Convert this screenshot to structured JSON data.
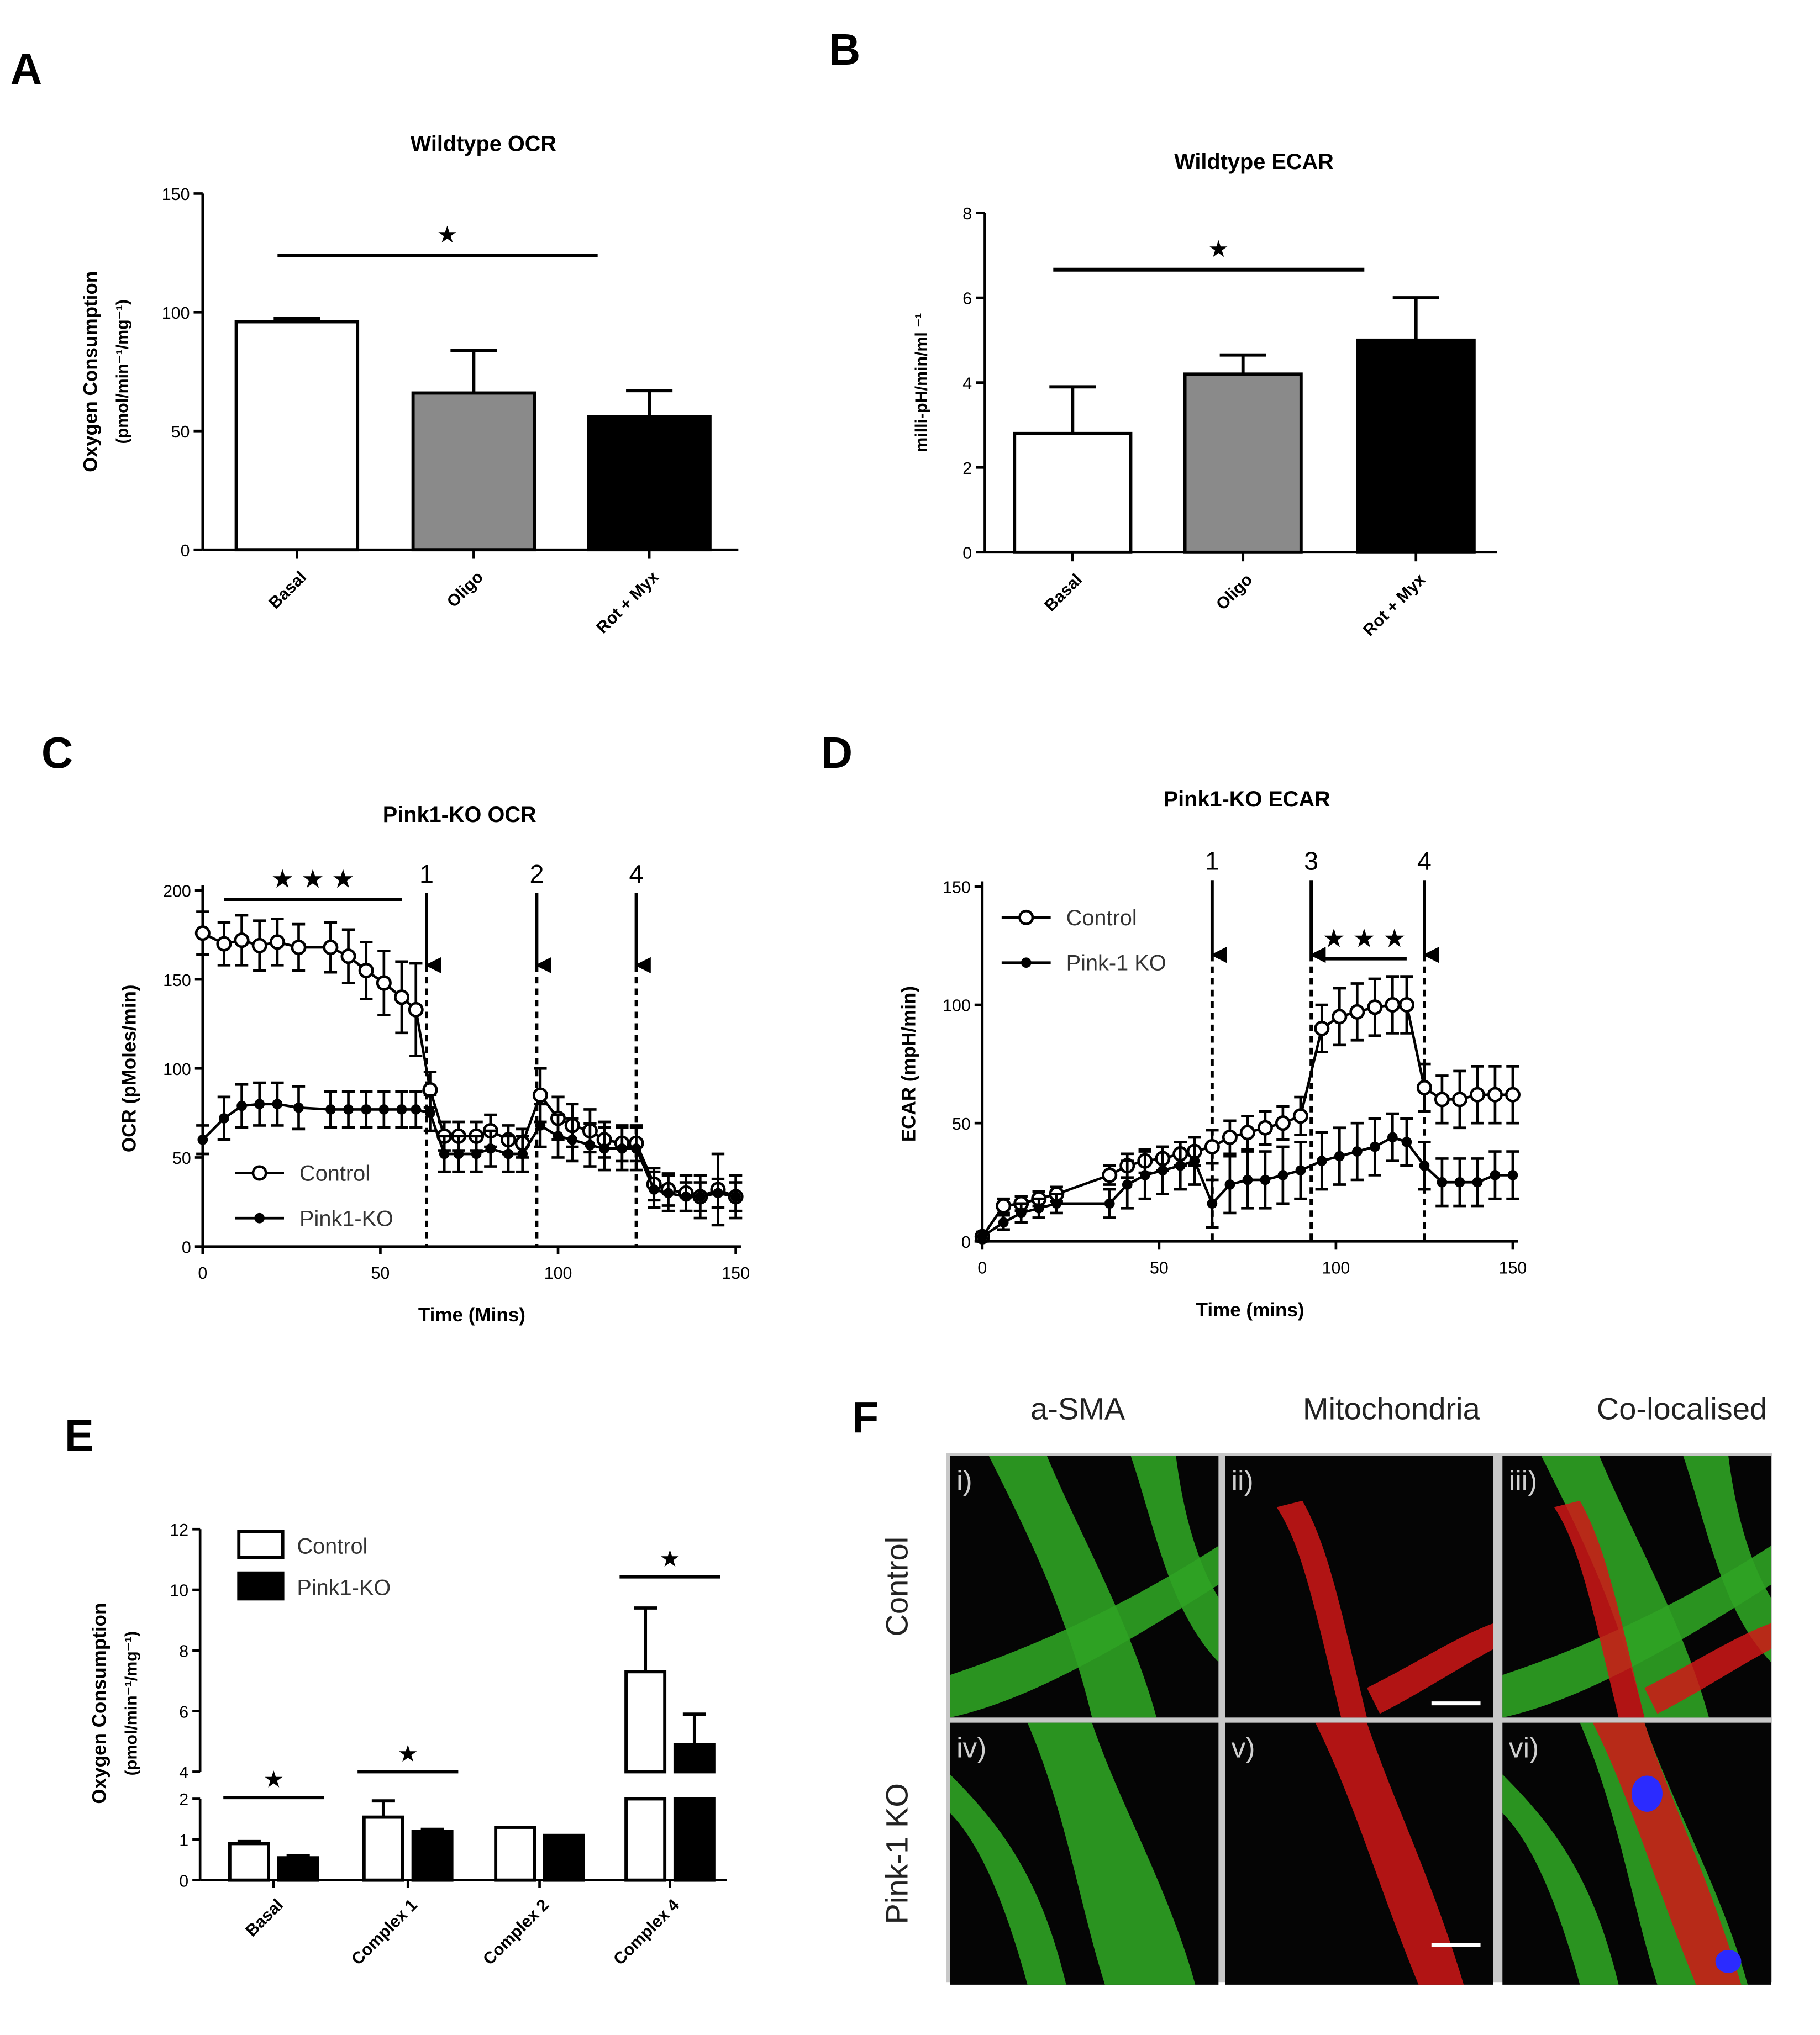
{
  "panels": {
    "A": {
      "letter": "A"
    },
    "B": {
      "letter": "B"
    },
    "C": {
      "letter": "C"
    },
    "D": {
      "letter": "D"
    },
    "E": {
      "letter": "E"
    },
    "F": {
      "letter": "F"
    }
  },
  "chart_data": [
    {
      "panel": "A",
      "type": "bar",
      "title": "Wildtype OCR",
      "ylabel": "Oxygen Consumption (pmol/min⁻¹/mg⁻¹)",
      "ylabel_line1": "Oxygen  Consumption",
      "ylabel_line2": "(pmol/min⁻¹/mg⁻¹)",
      "categories": [
        "Basal",
        "Oligo",
        "Rot + Myx"
      ],
      "values": [
        96,
        66,
        56
      ],
      "errors": [
        1.5,
        18,
        11
      ],
      "bar_colors": [
        "#ffffff",
        "#8a8a8a",
        "#000000"
      ],
      "ylim": [
        0,
        150
      ],
      "yticks": [
        "0",
        "50",
        "100",
        "150"
      ],
      "significance": {
        "mark": "★",
        "from": "Basal",
        "to": "Rot + Myx"
      }
    },
    {
      "panel": "B",
      "type": "bar",
      "title": "Wildtype ECAR",
      "ylabel": "milli-pH/min/ml ⁻¹",
      "categories": [
        "Basal",
        "Oligo",
        "Rot + Myx"
      ],
      "values": [
        2.8,
        4.2,
        5.0
      ],
      "errors": [
        1.1,
        0.45,
        1.0
      ],
      "bar_colors": [
        "#ffffff",
        "#8a8a8a",
        "#000000"
      ],
      "ylim": [
        0,
        8
      ],
      "yticks": [
        "0",
        "2",
        "4",
        "6",
        "8"
      ],
      "significance": {
        "mark": "★",
        "from": "Basal",
        "to": "Rot + Myx"
      }
    },
    {
      "panel": "C",
      "type": "line",
      "title": "Pink1-KO OCR",
      "xlabel": "Time (Mins)",
      "ylabel": "OCR (pMoles/min)",
      "xlim": [
        0,
        150
      ],
      "ylim": [
        0,
        200
      ],
      "xticks": [
        "0",
        "50",
        "100",
        "150"
      ],
      "yticks": [
        "0",
        "50",
        "100",
        "150",
        "200"
      ],
      "legend_position": "bottom-left",
      "injections": [
        {
          "label": "1",
          "x": 63
        },
        {
          "label": "2",
          "x": 94
        },
        {
          "label": "4",
          "x": 122
        }
      ],
      "significance": {
        "mark": "★ ★ ★",
        "x_from": 6,
        "x_to": 56
      },
      "series": [
        {
          "name": "Control",
          "marker": "open-circle",
          "x": [
            0,
            6,
            11,
            16,
            21,
            27,
            36,
            41,
            46,
            51,
            56,
            60,
            64,
            68,
            72,
            77,
            81,
            86,
            90,
            95,
            100,
            104,
            109,
            113,
            118,
            122,
            127,
            131,
            136,
            140,
            145,
            150
          ],
          "y": [
            176,
            170,
            172,
            169,
            171,
            168,
            168,
            163,
            155,
            148,
            140,
            133,
            88,
            62,
            62,
            62,
            65,
            60,
            58,
            85,
            72,
            68,
            65,
            60,
            58,
            58,
            35,
            32,
            30,
            28,
            32,
            28
          ],
          "err": [
            12,
            12,
            14,
            14,
            13,
            13,
            14,
            15,
            16,
            18,
            20,
            26,
            10,
            8,
            8,
            8,
            9,
            8,
            8,
            15,
            12,
            12,
            12,
            10,
            10,
            10,
            9,
            9,
            10,
            12,
            20,
            12
          ]
        },
        {
          "name": "Pink1-KO",
          "marker": "filled-circle",
          "x": [
            0,
            6,
            11,
            16,
            21,
            27,
            36,
            41,
            46,
            51,
            56,
            60,
            64,
            68,
            72,
            77,
            81,
            86,
            90,
            95,
            100,
            104,
            109,
            113,
            118,
            122,
            127,
            131,
            136,
            140,
            145,
            150
          ],
          "y": [
            60,
            72,
            79,
            80,
            80,
            78,
            77,
            77,
            77,
            77,
            77,
            77,
            75,
            52,
            52,
            52,
            55,
            52,
            52,
            68,
            62,
            60,
            57,
            55,
            55,
            55,
            32,
            30,
            28,
            28,
            30,
            28
          ],
          "err": [
            8,
            12,
            12,
            12,
            12,
            12,
            10,
            10,
            10,
            10,
            10,
            10,
            10,
            10,
            10,
            10,
            10,
            10,
            10,
            12,
            12,
            12,
            12,
            12,
            12,
            12,
            10,
            10,
            8,
            8,
            8,
            8
          ]
        }
      ]
    },
    {
      "panel": "D",
      "type": "line",
      "title": "Pink1-KO ECAR",
      "xlabel": "Time (mins)",
      "ylabel": "ECAR (mpH/min)",
      "xlim": [
        0,
        150
      ],
      "ylim": [
        0,
        150
      ],
      "xticks": [
        "0",
        "50",
        "100",
        "150"
      ],
      "yticks": [
        "0",
        "50",
        "100",
        "150"
      ],
      "legend_position": "top-left",
      "injections": [
        {
          "label": "1",
          "x": 65
        },
        {
          "label": "3",
          "x": 93
        },
        {
          "label": "4",
          "x": 125
        }
      ],
      "significance": {
        "mark": "★ ★ ★",
        "x_from": 96,
        "x_to": 120
      },
      "series": [
        {
          "name": "Control",
          "marker": "open-circle",
          "x": [
            0,
            6,
            11,
            16,
            21,
            36,
            41,
            46,
            51,
            56,
            60,
            65,
            70,
            75,
            80,
            85,
            90,
            96,
            101,
            106,
            111,
            116,
            120,
            125,
            130,
            135,
            140,
            145,
            150
          ],
          "y": [
            2,
            15,
            16,
            18,
            20,
            28,
            32,
            34,
            35,
            37,
            38,
            40,
            44,
            46,
            48,
            50,
            53,
            90,
            95,
            97,
            99,
            100,
            100,
            65,
            60,
            60,
            62,
            62,
            62
          ],
          "err": [
            2,
            3,
            3,
            3,
            3,
            4,
            5,
            5,
            5,
            5,
            6,
            7,
            7,
            7,
            7,
            7,
            8,
            10,
            12,
            12,
            12,
            12,
            12,
            10,
            10,
            12,
            12,
            12,
            12
          ]
        },
        {
          "name": "Pink-1 KO",
          "marker": "filled-circle",
          "x": [
            0,
            6,
            11,
            16,
            21,
            36,
            41,
            46,
            51,
            56,
            60,
            65,
            70,
            75,
            80,
            85,
            90,
            96,
            101,
            106,
            111,
            116,
            120,
            125,
            130,
            135,
            140,
            145,
            150
          ],
          "y": [
            2,
            8,
            12,
            14,
            16,
            16,
            24,
            28,
            30,
            32,
            34,
            16,
            24,
            26,
            26,
            28,
            30,
            34,
            36,
            38,
            40,
            44,
            42,
            32,
            25,
            25,
            25,
            28,
            28
          ],
          "err": [
            2,
            3,
            4,
            4,
            4,
            6,
            10,
            10,
            10,
            10,
            10,
            10,
            12,
            12,
            12,
            12,
            12,
            12,
            12,
            12,
            12,
            10,
            10,
            10,
            10,
            10,
            10,
            10,
            10
          ]
        }
      ]
    },
    {
      "panel": "E",
      "type": "bar",
      "ylabel": "Oxygen Consumption (pmol/min⁻¹/mg⁻¹)",
      "ylabel_line1": "Oxygen Consumption",
      "ylabel_line2": "(pmol/min⁻¹/mg⁻¹)",
      "categories": [
        "Basal",
        "Complex 1",
        "Complex 2",
        "Complex 4"
      ],
      "ylim": [
        0,
        12
      ],
      "axis_break": [
        2,
        4
      ],
      "yticks": [
        "0",
        "1",
        "2",
        "4",
        "6",
        "8",
        "10",
        "12"
      ],
      "legend_position": "top-left",
      "series": [
        {
          "name": "Control",
          "color": "#ffffff",
          "values": [
            0.9,
            1.55,
            1.3,
            7.3
          ],
          "errors": [
            0.05,
            0.4,
            0.0,
            2.1
          ]
        },
        {
          "name": "Pink1-KO",
          "color": "#000000",
          "values": [
            0.55,
            1.2,
            1.1,
            4.9
          ],
          "errors": [
            0.05,
            0.05,
            0.0,
            1.0
          ]
        }
      ],
      "significance": [
        {
          "mark": "★",
          "category": "Basal"
        },
        {
          "mark": "★",
          "category": "Complex 1"
        },
        {
          "mark": "★",
          "category": "Complex 4"
        }
      ]
    }
  ],
  "microscopy": {
    "columns": [
      "a-SMA",
      "Mitochondria",
      "Co-localised"
    ],
    "rows": [
      "Control",
      "Pink-1 KO"
    ],
    "tiles": [
      "i)",
      "ii)",
      "iii)",
      "iv)",
      "v)",
      "vi)"
    ]
  }
}
